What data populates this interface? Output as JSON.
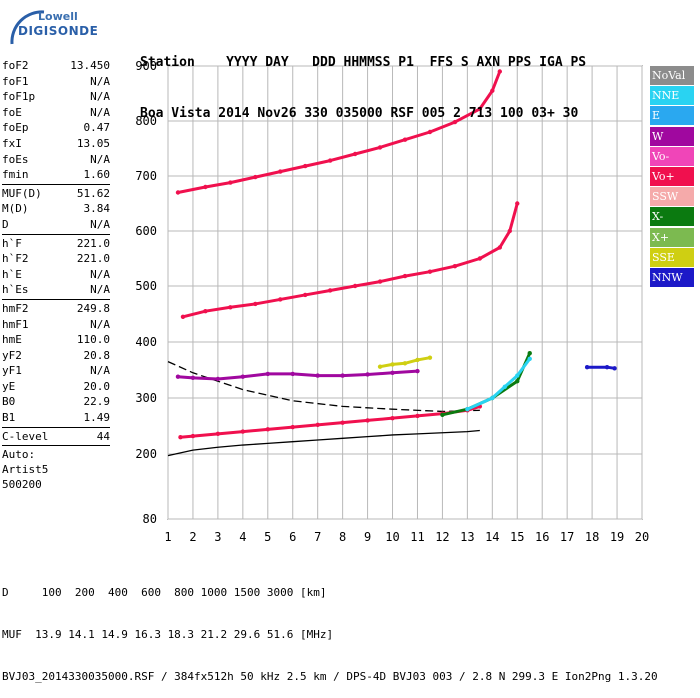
{
  "logo": {
    "line1": "Lowell",
    "line2": "DIGISONDE"
  },
  "header": {
    "labels": "Station    YYYY DAY   DDD HHMMSS P1  FFS S AXN PPS IGA PS",
    "values": "Boa Vista 2014 Nov26 330 035000 RSF 005 2 713 100 03+ 30"
  },
  "params": {
    "group1": [
      {
        "name": "foF2",
        "value": "13.450"
      },
      {
        "name": "foF1",
        "value": "N/A"
      },
      {
        "name": "foF1p",
        "value": "N/A"
      },
      {
        "name": "foE",
        "value": "N/A"
      },
      {
        "name": "foEp",
        "value": "0.47"
      },
      {
        "name": "fxI",
        "value": "13.05"
      },
      {
        "name": "foEs",
        "value": "N/A"
      },
      {
        "name": "fmin",
        "value": "1.60"
      }
    ],
    "group2": [
      {
        "name": "MUF(D)",
        "value": "51.62"
      },
      {
        "name": "M(D)",
        "value": "3.84"
      },
      {
        "name": "D",
        "value": "N/A"
      }
    ],
    "group3": [
      {
        "name": "h`F",
        "value": "221.0"
      },
      {
        "name": "h`F2",
        "value": "221.0"
      },
      {
        "name": "h`E",
        "value": "N/A"
      },
      {
        "name": "h`Es",
        "value": "N/A"
      }
    ],
    "group4": [
      {
        "name": "hmF2",
        "value": "249.8"
      },
      {
        "name": "hmF1",
        "value": "N/A"
      },
      {
        "name": "hmE",
        "value": "110.0"
      },
      {
        "name": "yF2",
        "value": "20.8"
      },
      {
        "name": "yF1",
        "value": "N/A"
      },
      {
        "name": "yE",
        "value": "20.0"
      },
      {
        "name": "B0",
        "value": "22.9"
      },
      {
        "name": "B1",
        "value": "1.49"
      }
    ],
    "group5": [
      {
        "name": "C-level",
        "value": "44"
      }
    ],
    "auto": [
      "Auto:",
      "Artist5",
      "500200"
    ]
  },
  "legend": [
    {
      "label": "NoVal",
      "color": "#8c8c8c"
    },
    {
      "label": "NNE",
      "color": "#29d3f2"
    },
    {
      "label": "E",
      "color": "#2aa8f0"
    },
    {
      "label": "W",
      "color": "#a0089f"
    },
    {
      "label": "Vo-",
      "color": "#f045b8"
    },
    {
      "label": "Vo+",
      "color": "#f0104e"
    },
    {
      "label": "SSW",
      "color": "#f5aaaa"
    },
    {
      "label": "X-",
      "color": "#0b7a10"
    },
    {
      "label": "X+",
      "color": "#7cba50"
    },
    {
      "label": "SSE",
      "color": "#cfcf12"
    },
    {
      "label": "NNW",
      "color": "#1c19c8"
    }
  ],
  "chart_data": {
    "type": "scatter",
    "xlabel": "",
    "ylabel": "",
    "xlim": [
      1,
      20
    ],
    "ylim": [
      80,
      900
    ],
    "x_ticks": [
      1,
      2,
      3,
      4,
      5,
      6,
      7,
      8,
      9,
      10,
      11,
      12,
      13,
      14,
      15,
      16,
      17,
      18,
      19,
      20
    ],
    "y_ticks": [
      80,
      200,
      300,
      400,
      500,
      600,
      700,
      800,
      900
    ],
    "grid": true,
    "series": [
      {
        "name": "Vo+",
        "color": "#f0104e",
        "x": [
          1.5,
          2,
          3,
          4,
          5,
          6,
          7,
          8,
          9,
          10,
          11,
          12,
          13,
          13.5
        ],
        "y": [
          230,
          232,
          236,
          240,
          244,
          248,
          252,
          256,
          260,
          264,
          268,
          272,
          278,
          285
        ]
      },
      {
        "name": "Vo+",
        "color": "#f0104e",
        "x": [
          1.6,
          2.5,
          3.5,
          4.5,
          5.5,
          6.5,
          7.5,
          8.5,
          9.5,
          10.5,
          11.5,
          12.5,
          13.5,
          14.3,
          14.7,
          15
        ],
        "y": [
          445,
          455,
          462,
          468,
          476,
          484,
          492,
          500,
          508,
          518,
          526,
          536,
          550,
          570,
          600,
          650
        ]
      },
      {
        "name": "Vo+",
        "color": "#f0104e",
        "x": [
          1.4,
          2.5,
          3.5,
          4.5,
          5.5,
          6.5,
          7.5,
          8.5,
          9.5,
          10.5,
          11.5,
          12.5,
          13.5,
          14,
          14.3
        ],
        "y": [
          670,
          680,
          688,
          698,
          708,
          718,
          728,
          740,
          752,
          766,
          780,
          798,
          822,
          855,
          890
        ]
      },
      {
        "name": "X-",
        "color": "#0b7a10",
        "x": [
          12,
          13,
          14,
          15,
          15.5
        ],
        "y": [
          270,
          280,
          300,
          330,
          380
        ]
      },
      {
        "name": "NNE",
        "color": "#29d3f2",
        "x": [
          13,
          14,
          14.5,
          15,
          15.5
        ],
        "y": [
          280,
          300,
          320,
          340,
          370
        ]
      },
      {
        "name": "NNW",
        "color": "#1c19c8",
        "x": [
          17.8,
          18.6,
          18.9
        ],
        "y": [
          355,
          355,
          353
        ]
      },
      {
        "name": "W",
        "color": "#a0089f",
        "x": [
          1.4,
          2,
          3,
          4,
          5,
          6,
          7,
          8,
          9,
          10,
          11
        ],
        "y": [
          338,
          336,
          334,
          338,
          343,
          343,
          340,
          340,
          342,
          345,
          348
        ]
      },
      {
        "name": "SSE",
        "color": "#cfcf12",
        "x": [
          9.5,
          10,
          10.5,
          11,
          11.5
        ],
        "y": [
          356,
          360,
          362,
          368,
          372
        ]
      }
    ],
    "profile": {
      "x": [
        1,
        2,
        3,
        4,
        5,
        6,
        7,
        8,
        9,
        10,
        11,
        12,
        13,
        13.5
      ],
      "y": [
        197,
        207,
        212,
        216,
        219,
        222,
        225,
        228,
        231,
        234,
        236,
        238,
        240,
        242
      ]
    },
    "dashed": {
      "x": [
        1,
        2,
        4,
        6,
        8,
        10,
        12,
        13.5
      ],
      "y": [
        365,
        345,
        315,
        295,
        285,
        280,
        276,
        278
      ]
    }
  },
  "footer": {
    "d_row": "D     100  200  400  600  800 1000 1500 3000 [km]",
    "muf_row": "MUF  13.9 14.1 14.9 16.3 18.3 21.2 29.6 51.6 [MHz]",
    "file_row": "BVJ03_2014330035000.RSF / 384fx512h 50 kHz 2.5 km / DPS-4D BVJ03 003 / 2.8 N 299.3 E Ion2Png 1.3.20"
  }
}
